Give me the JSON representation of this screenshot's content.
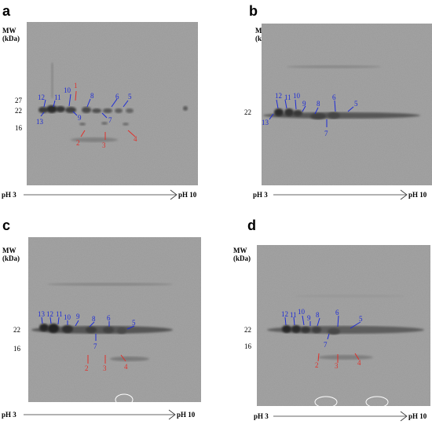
{
  "figure": {
    "mw_label_line1": "MW",
    "mw_label_line2": "(kDa)",
    "ph_start": "pH 3",
    "ph_end": "pH 10",
    "colors": {
      "blue": "#1d2bd6",
      "red": "#e0302a",
      "gel": "#9a9a9a"
    }
  },
  "panels": [
    {
      "letter": "a",
      "mw_markers": [
        "27",
        "22",
        "16"
      ],
      "blue_spots": [
        "1",
        "2",
        "3",
        "4",
        "5",
        "6",
        "7",
        "8",
        "9",
        "10",
        "11",
        "12",
        "13"
      ],
      "red_spots": [
        "1",
        "2",
        "3",
        "4"
      ]
    },
    {
      "letter": "b",
      "mw_markers": [
        "22"
      ],
      "blue_spots": [
        "5",
        "6",
        "7",
        "8",
        "9",
        "10",
        "11",
        "12",
        "13"
      ],
      "red_spots": []
    },
    {
      "letter": "c",
      "mw_markers": [
        "22",
        "16"
      ],
      "blue_spots": [
        "5",
        "6",
        "7",
        "8",
        "9",
        "10",
        "11",
        "12",
        "13"
      ],
      "red_spots": [
        "2",
        "3",
        "4"
      ]
    },
    {
      "letter": "d",
      "mw_markers": [
        "22",
        "16"
      ],
      "blue_spots": [
        "5",
        "6",
        "7",
        "8",
        "9",
        "10",
        "11",
        "12"
      ],
      "red_spots": [
        "2",
        "3",
        "4"
      ]
    }
  ]
}
